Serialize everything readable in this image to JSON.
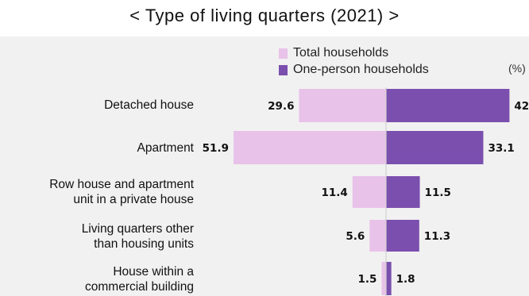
{
  "chart_data": {
    "type": "bar",
    "orientation": "horizontal-diverging",
    "title": "< Type of living quarters (2021) >",
    "unit": "(%)",
    "categories": [
      [
        "Detached house"
      ],
      [
        "Apartment"
      ],
      [
        "Row house and apartment",
        "unit in a private house"
      ],
      [
        "Living quarters other",
        "than housing units"
      ],
      [
        "House within a",
        "commercial building"
      ]
    ],
    "series": [
      {
        "name": "Total households",
        "values": [
          29.6,
          51.9,
          11.4,
          5.6,
          1.5
        ],
        "color": "#e9c2ea",
        "side": "left"
      },
      {
        "name": "One-person households",
        "values": [
          42,
          33.1,
          11.5,
          11.3,
          1.8
        ],
        "color": "#7b4fae",
        "side": "right"
      }
    ],
    "value_labels": [
      [
        "29.6",
        "51.9",
        "11.4",
        "5.6",
        "1.5"
      ],
      [
        "42",
        "33.1",
        "11.5",
        "11.3",
        "1.8"
      ]
    ],
    "legend_position": "top-center",
    "grid": false,
    "background": "#f1f1f1"
  }
}
